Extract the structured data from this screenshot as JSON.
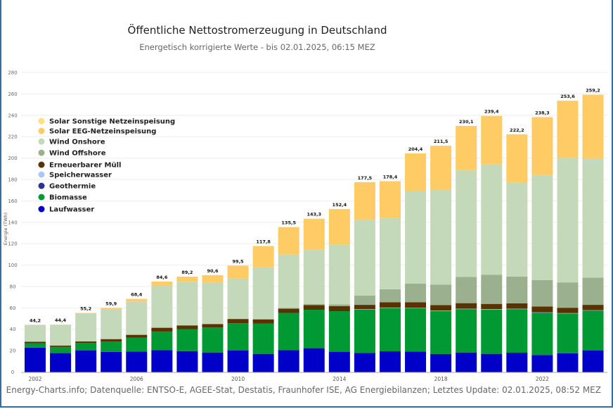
{
  "chart_data": {
    "type": "bar",
    "stacked": true,
    "title": "Öffentliche Nettostromerzeugung in Deutschland",
    "subtitle": "Energetisch korrigierte Werte - bis 02.01.2025, 06:15 MEZ",
    "ylabel": "Energie (TWh)",
    "xlabel": "",
    "ylim": [
      0,
      280
    ],
    "yticks": [
      0,
      20,
      40,
      60,
      80,
      100,
      120,
      140,
      160,
      180,
      200,
      220,
      240,
      260,
      280
    ],
    "xtick_labels": [
      "2002",
      "2006",
      "2010",
      "2014",
      "2018",
      "2022"
    ],
    "grid": true,
    "legend_position": "left",
    "categories": [
      "2002",
      "2003",
      "2004",
      "2005",
      "2006",
      "2007",
      "2008",
      "2009",
      "2010",
      "2011",
      "2012",
      "2013",
      "2014",
      "2015",
      "2016",
      "2017",
      "2018",
      "2019",
      "2020",
      "2021",
      "2022",
      "2023",
      "2024"
    ],
    "totals": [
      "44,2",
      "44,4",
      "55,2",
      "59,9",
      "68,4",
      "84,6",
      "89,2",
      "90,6",
      "99,5",
      "117,8",
      "135,5",
      "143,3",
      "152,4",
      "177,5",
      "178,4",
      "204,4",
      "211,5",
      "230,1",
      "239,4",
      "222,2",
      "238,3",
      "253,6",
      "259,2"
    ],
    "series": [
      {
        "name": "Laufwasser",
        "color": "#0000c8",
        "values": [
          22.8,
          17.7,
          20.3,
          18.9,
          19.2,
          20.5,
          19.6,
          18.3,
          20.3,
          17.0,
          20.5,
          22.3,
          19.0,
          17.9,
          19.4,
          19.2,
          16.8,
          18.3,
          17.0,
          18.1,
          15.9,
          17.6,
          20.3
        ]
      },
      {
        "name": "Biomasse",
        "color": "#009933",
        "values": [
          4.2,
          5.8,
          6.8,
          9.5,
          13.0,
          17.4,
          20.3,
          23.3,
          25.3,
          28.2,
          34.8,
          35.9,
          37.9,
          40.3,
          40.4,
          40.4,
          40.1,
          40.3,
          41.2,
          40.5,
          39.4,
          37.0,
          37.0
        ]
      },
      {
        "name": "Geothermie",
        "color": "#2b3490",
        "values": [
          0,
          0,
          0,
          0,
          0,
          0,
          0,
          0,
          0,
          0,
          0,
          0,
          0,
          0.1,
          0.2,
          0.2,
          0.2,
          0.2,
          0.2,
          0.2,
          0.2,
          0.2,
          0.2
        ]
      },
      {
        "name": "Speicherwasser",
        "color": "#aec6f2",
        "values": [
          0,
          0,
          0,
          0,
          0,
          0,
          0,
          0,
          0,
          0,
          0,
          0,
          0,
          0.4,
          0.3,
          0.3,
          0.4,
          0.4,
          0.4,
          0.4,
          0.3,
          0.3,
          0.3
        ]
      },
      {
        "name": "Erneuerbarer Müll",
        "color": "#583200",
        "values": [
          1.3,
          1.3,
          1.5,
          2.4,
          2.6,
          3.5,
          3.7,
          3.3,
          4.0,
          3.9,
          3.9,
          4.4,
          4.8,
          4.1,
          5.0,
          5.2,
          5.1,
          5.2,
          4.9,
          5.0,
          5.5,
          5.0,
          5.0
        ]
      },
      {
        "name": "Wind Offshore",
        "color": "#9bb08f",
        "values": [
          0,
          0,
          0,
          0,
          0,
          0,
          0,
          0,
          0,
          0.6,
          0.7,
          0.9,
          1.5,
          8.6,
          12.1,
          17.3,
          19.2,
          24.6,
          27.3,
          25.1,
          24.7,
          23.7,
          25.5
        ]
      },
      {
        "name": "Wind Onshore",
        "color": "#c4d9ba",
        "values": [
          15.7,
          19.1,
          26.0,
          27.6,
          31.1,
          39.9,
          40.8,
          38.8,
          37.8,
          48.2,
          49.9,
          50.9,
          56.1,
          70.8,
          66.5,
          86.5,
          89.0,
          99.7,
          103.0,
          87.5,
          98.1,
          116.3,
          111.4
        ]
      },
      {
        "name": "Solar EEG-Netzeinspeisung",
        "color": "#ffcb64",
        "values": [
          0.2,
          0.5,
          0.6,
          1.5,
          2.5,
          3.3,
          4.8,
          6.9,
          12.1,
          19.9,
          25.7,
          28.9,
          33.1,
          35.3,
          34.5,
          35.3,
          40.7,
          41.4,
          45.4,
          45.4,
          54.2,
          53.5,
          59.5
        ]
      },
      {
        "name": "Solar Sonstige Netzeinspeisung",
        "color": "#ffe07e",
        "values": [
          0,
          0,
          0,
          0,
          0,
          0,
          0,
          0,
          0,
          0,
          0,
          0,
          0,
          0,
          0,
          0,
          0,
          0,
          0,
          0,
          0,
          0,
          0
        ]
      }
    ],
    "legend_order": [
      "Solar Sonstige Netzeinspeisung",
      "Solar EEG-Netzeinspeisung",
      "Wind Onshore",
      "Wind Offshore",
      "Erneuerbarer Müll",
      "Speicherwasser",
      "Geothermie",
      "Biomasse",
      "Laufwasser"
    ]
  },
  "footer": "Energy-Charts.info; Datenquelle: ENTSO-E, AGEE-Stat, Destatis, Fraunhofer ISE, AG Energiebilanzen; Letztes Update: 02.01.2025, 08:52 MEZ"
}
